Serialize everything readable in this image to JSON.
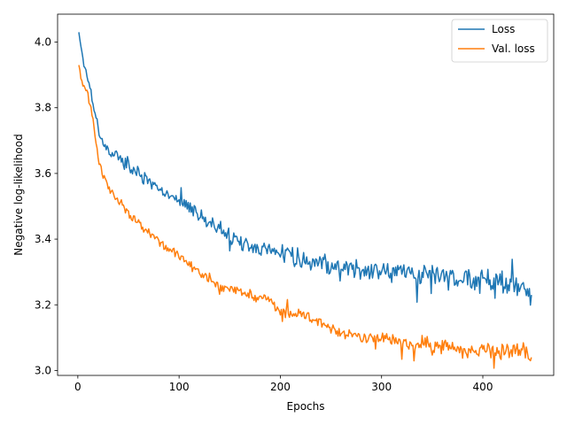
{
  "chart_data": {
    "type": "line",
    "title": "",
    "xlabel": "Epochs",
    "ylabel": "Negative log-likelihood",
    "xlim": [
      -20,
      470
    ],
    "ylim": [
      2.985,
      4.085
    ],
    "x_ticks": [
      0,
      100,
      200,
      300,
      400
    ],
    "y_ticks": [
      3.0,
      3.2,
      3.4,
      3.6,
      3.8,
      4.0
    ],
    "x_tick_labels": [
      "0",
      "100",
      "200",
      "300",
      "400"
    ],
    "y_tick_labels": [
      "3.0",
      "3.2",
      "3.4",
      "3.6",
      "3.8",
      "4.0"
    ],
    "grid": false,
    "legend_position": "top-right",
    "series": [
      {
        "name": "Loss",
        "color": "#1f77b4",
        "x": [
          1,
          5,
          10,
          15,
          20,
          25,
          30,
          40,
          50,
          60,
          70,
          80,
          90,
          100,
          110,
          120,
          130,
          140,
          150,
          160,
          170,
          180,
          190,
          200,
          210,
          220,
          230,
          240,
          250,
          260,
          270,
          280,
          290,
          300,
          310,
          320,
          330,
          340,
          350,
          360,
          370,
          380,
          390,
          400,
          410,
          420,
          430,
          440,
          448
        ],
        "y": [
          4.03,
          3.95,
          3.89,
          3.82,
          3.74,
          3.69,
          3.67,
          3.65,
          3.62,
          3.6,
          3.57,
          3.55,
          3.53,
          3.51,
          3.5,
          3.47,
          3.45,
          3.43,
          3.41,
          3.39,
          3.38,
          3.37,
          3.36,
          3.36,
          3.35,
          3.34,
          3.33,
          3.33,
          3.32,
          3.31,
          3.31,
          3.31,
          3.3,
          3.3,
          3.3,
          3.3,
          3.29,
          3.29,
          3.29,
          3.28,
          3.28,
          3.28,
          3.27,
          3.27,
          3.27,
          3.27,
          3.26,
          3.26,
          3.23
        ],
        "noise": 0.012
      },
      {
        "name": "Val. loss",
        "color": "#ff7f0e",
        "x": [
          1,
          5,
          10,
          15,
          20,
          25,
          30,
          40,
          50,
          60,
          70,
          80,
          90,
          100,
          110,
          120,
          130,
          140,
          150,
          160,
          170,
          180,
          190,
          200,
          210,
          220,
          230,
          240,
          250,
          260,
          270,
          280,
          290,
          300,
          310,
          320,
          330,
          340,
          350,
          360,
          370,
          380,
          390,
          400,
          410,
          420,
          430,
          440,
          448
        ],
        "y": [
          3.93,
          3.87,
          3.84,
          3.76,
          3.65,
          3.59,
          3.56,
          3.52,
          3.48,
          3.45,
          3.42,
          3.39,
          3.37,
          3.35,
          3.32,
          3.3,
          3.28,
          3.26,
          3.25,
          3.24,
          3.23,
          3.22,
          3.21,
          3.18,
          3.17,
          3.17,
          3.16,
          3.15,
          3.13,
          3.12,
          3.11,
          3.1,
          3.1,
          3.1,
          3.09,
          3.09,
          3.08,
          3.08,
          3.07,
          3.07,
          3.07,
          3.06,
          3.06,
          3.06,
          3.06,
          3.06,
          3.06,
          3.06,
          3.04
        ],
        "noise": 0.008
      }
    ]
  }
}
